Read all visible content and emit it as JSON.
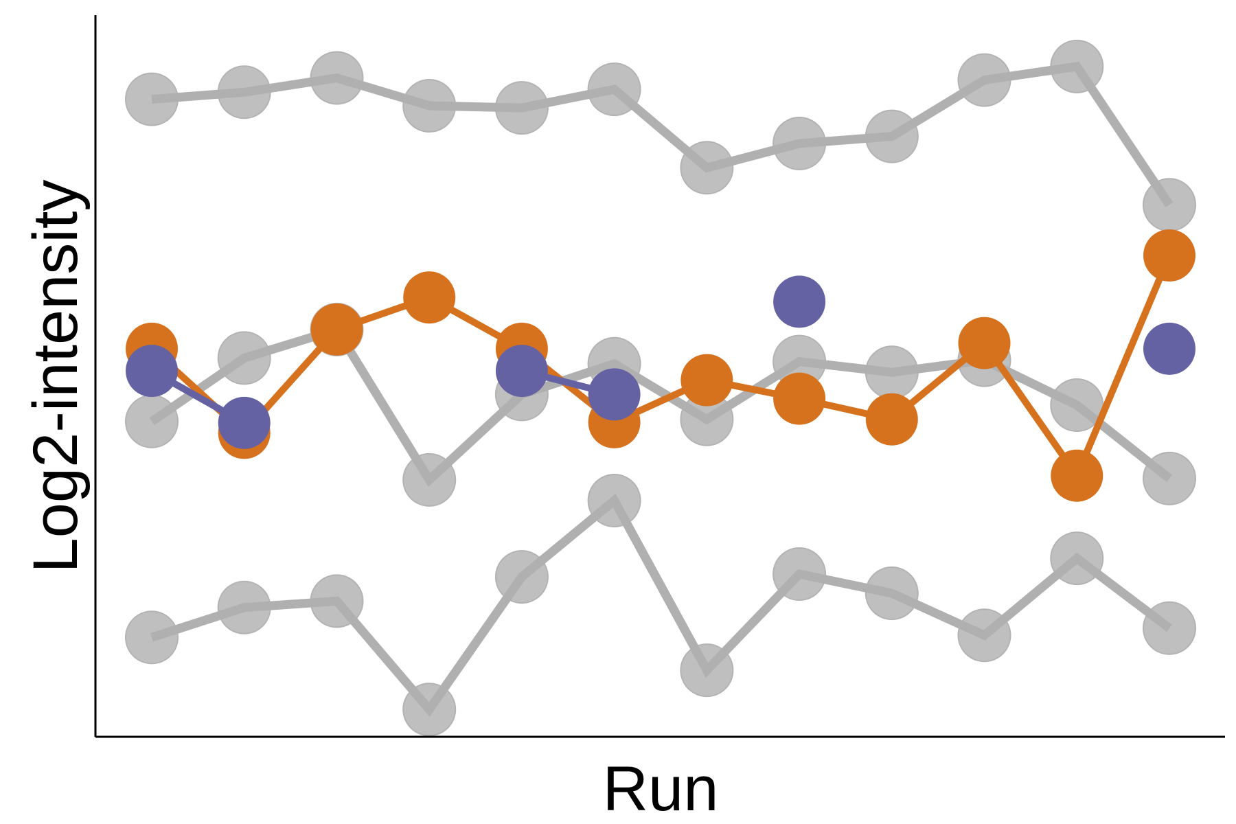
{
  "chart_data": {
    "type": "line",
    "title": "",
    "xlabel": "Run",
    "ylabel": "Log2-intensity",
    "x": [
      1,
      2,
      3,
      4,
      5,
      6,
      7,
      8,
      9,
      10,
      11,
      12
    ],
    "xlim": [
      0.4,
      12.6
    ],
    "ylim": [
      0,
      100
    ],
    "x_ticks_shown": false,
    "y_ticks_shown": false,
    "grid": false,
    "legend": "none",
    "colors": {
      "background_series": "#bfbfbf",
      "background_line": "#b0b0b0",
      "orange": "#d6721e",
      "purple": "#6562a4"
    },
    "series": [
      {
        "style": "gray",
        "values": [
          90.4,
          91.4,
          93.4,
          89.5,
          89.2,
          91.8,
          80.8,
          84.2,
          85.2,
          93.1,
          95.0,
          75.6
        ]
      },
      {
        "style": "gray",
        "values": [
          45.2,
          54.1,
          58.1,
          37.0,
          49.0,
          53.3,
          45.5,
          53.6,
          52.1,
          53.8,
          47.5,
          37.2
        ]
      },
      {
        "style": "gray",
        "values": [
          14.9,
          19.1,
          20.0,
          4.8,
          23.4,
          34.1,
          10.3,
          23.8,
          21.1,
          15.2,
          26.0,
          16.2
        ]
      },
      {
        "style": "orange",
        "values": [
          55.4,
          43.6,
          58.1,
          62.6,
          55.4,
          45.1,
          51.0,
          48.4,
          45.5,
          56.2,
          37.6,
          68.5
        ]
      },
      {
        "style": "purple",
        "values": [
          52.3,
          45.0,
          null,
          null,
          52.3,
          49.0,
          null,
          62.0,
          null,
          null,
          null,
          55.4
        ],
        "connect_only_consecutive": true
      }
    ]
  }
}
